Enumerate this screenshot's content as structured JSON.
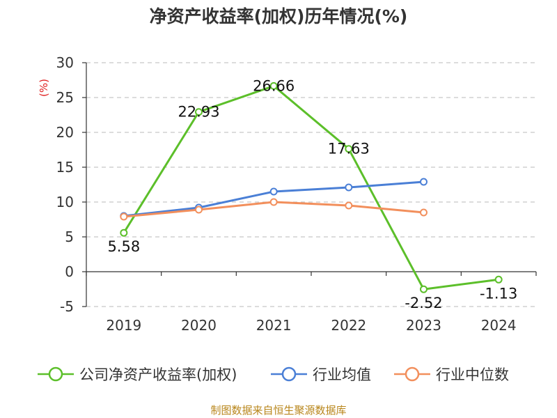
{
  "chart_data": {
    "type": "line",
    "title": "净资产收益率(加权)历年情况(%)",
    "ylabel": "(%)",
    "categories": [
      "2019",
      "2020",
      "2021",
      "2022",
      "2023",
      "2024"
    ],
    "ylim": [
      -5,
      30
    ],
    "yticks": [
      -5,
      0,
      5,
      10,
      15,
      20,
      25,
      30
    ],
    "grid": true,
    "legend_position": "bottom",
    "series": [
      {
        "name": "公司净资产收益率(加权)",
        "color": "#5cbf2a",
        "values": [
          5.58,
          22.93,
          26.66,
          17.63,
          -2.52,
          -1.13
        ],
        "labels": true
      },
      {
        "name": "行业均值",
        "color": "#4a7fd6",
        "values": [
          8.0,
          9.2,
          11.5,
          12.1,
          12.9,
          null
        ],
        "labels": false
      },
      {
        "name": "行业中位数",
        "color": "#f28f5c",
        "values": [
          7.9,
          8.9,
          10.0,
          9.5,
          8.5,
          null
        ],
        "labels": false
      }
    ]
  },
  "source": "制图数据来自恒生聚源数据库"
}
